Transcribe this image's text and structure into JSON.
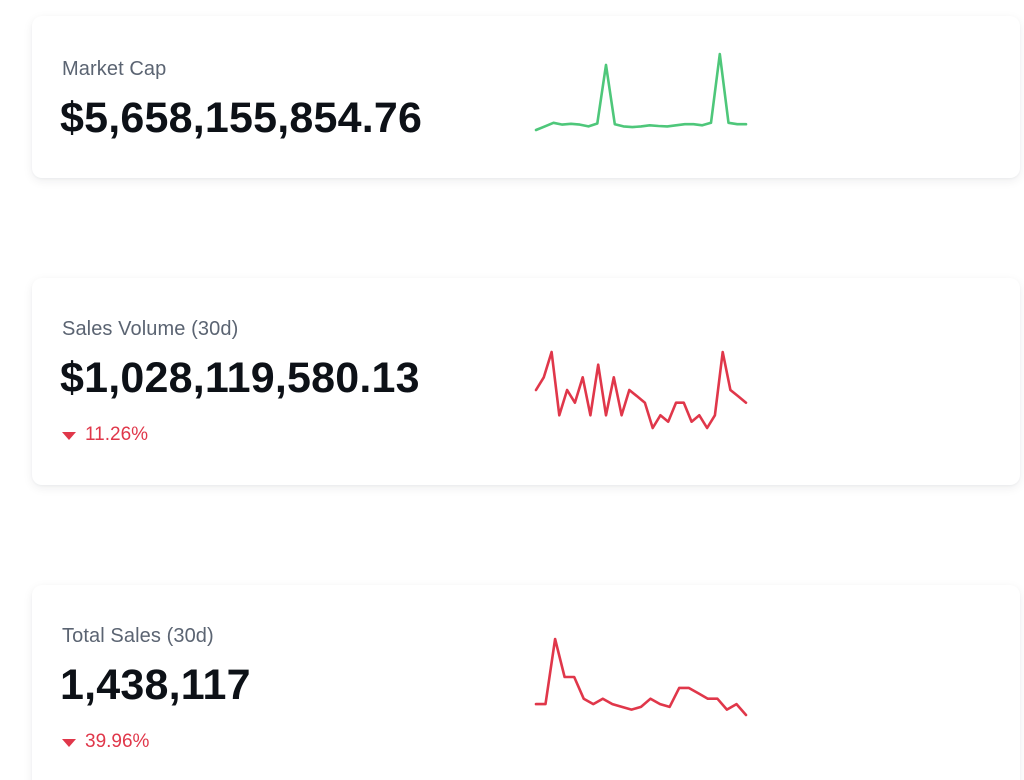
{
  "colors": {
    "up": "#4ec77a",
    "down": "#e0374a"
  },
  "cards": [
    {
      "label": "Market Cap",
      "value": "$5,658,155,854.76",
      "trend": "up",
      "sparkline": [
        4,
        5,
        6,
        5.5,
        5.7,
        5.5,
        5,
        5.8,
        22,
        5.6,
        5,
        4.8,
        5,
        5.3,
        5.1,
        5,
        5.3,
        5.6,
        5.6,
        5.3,
        6,
        25,
        6,
        5.6,
        5.6
      ]
    },
    {
      "label": "Sales Volume (30d)",
      "value": "$1,028,119,580.13",
      "change": "11.26%",
      "trend": "down",
      "sparkline": [
        15,
        16,
        18,
        13,
        15,
        14,
        16,
        13,
        17,
        13,
        16,
        13,
        15,
        14.5,
        14,
        12,
        13,
        12.5,
        14,
        14,
        12.5,
        13,
        12,
        13,
        18,
        15,
        14.5,
        14
      ]
    },
    {
      "label": "Total Sales (30d)",
      "value": "1,438,117",
      "change": "39.96%",
      "trend": "down",
      "sparkline": [
        9,
        9,
        21,
        14,
        14,
        10,
        9,
        10,
        9,
        8.5,
        8,
        8.5,
        10,
        9,
        8.5,
        12,
        12,
        11,
        10,
        10,
        8,
        9,
        7
      ]
    }
  ]
}
